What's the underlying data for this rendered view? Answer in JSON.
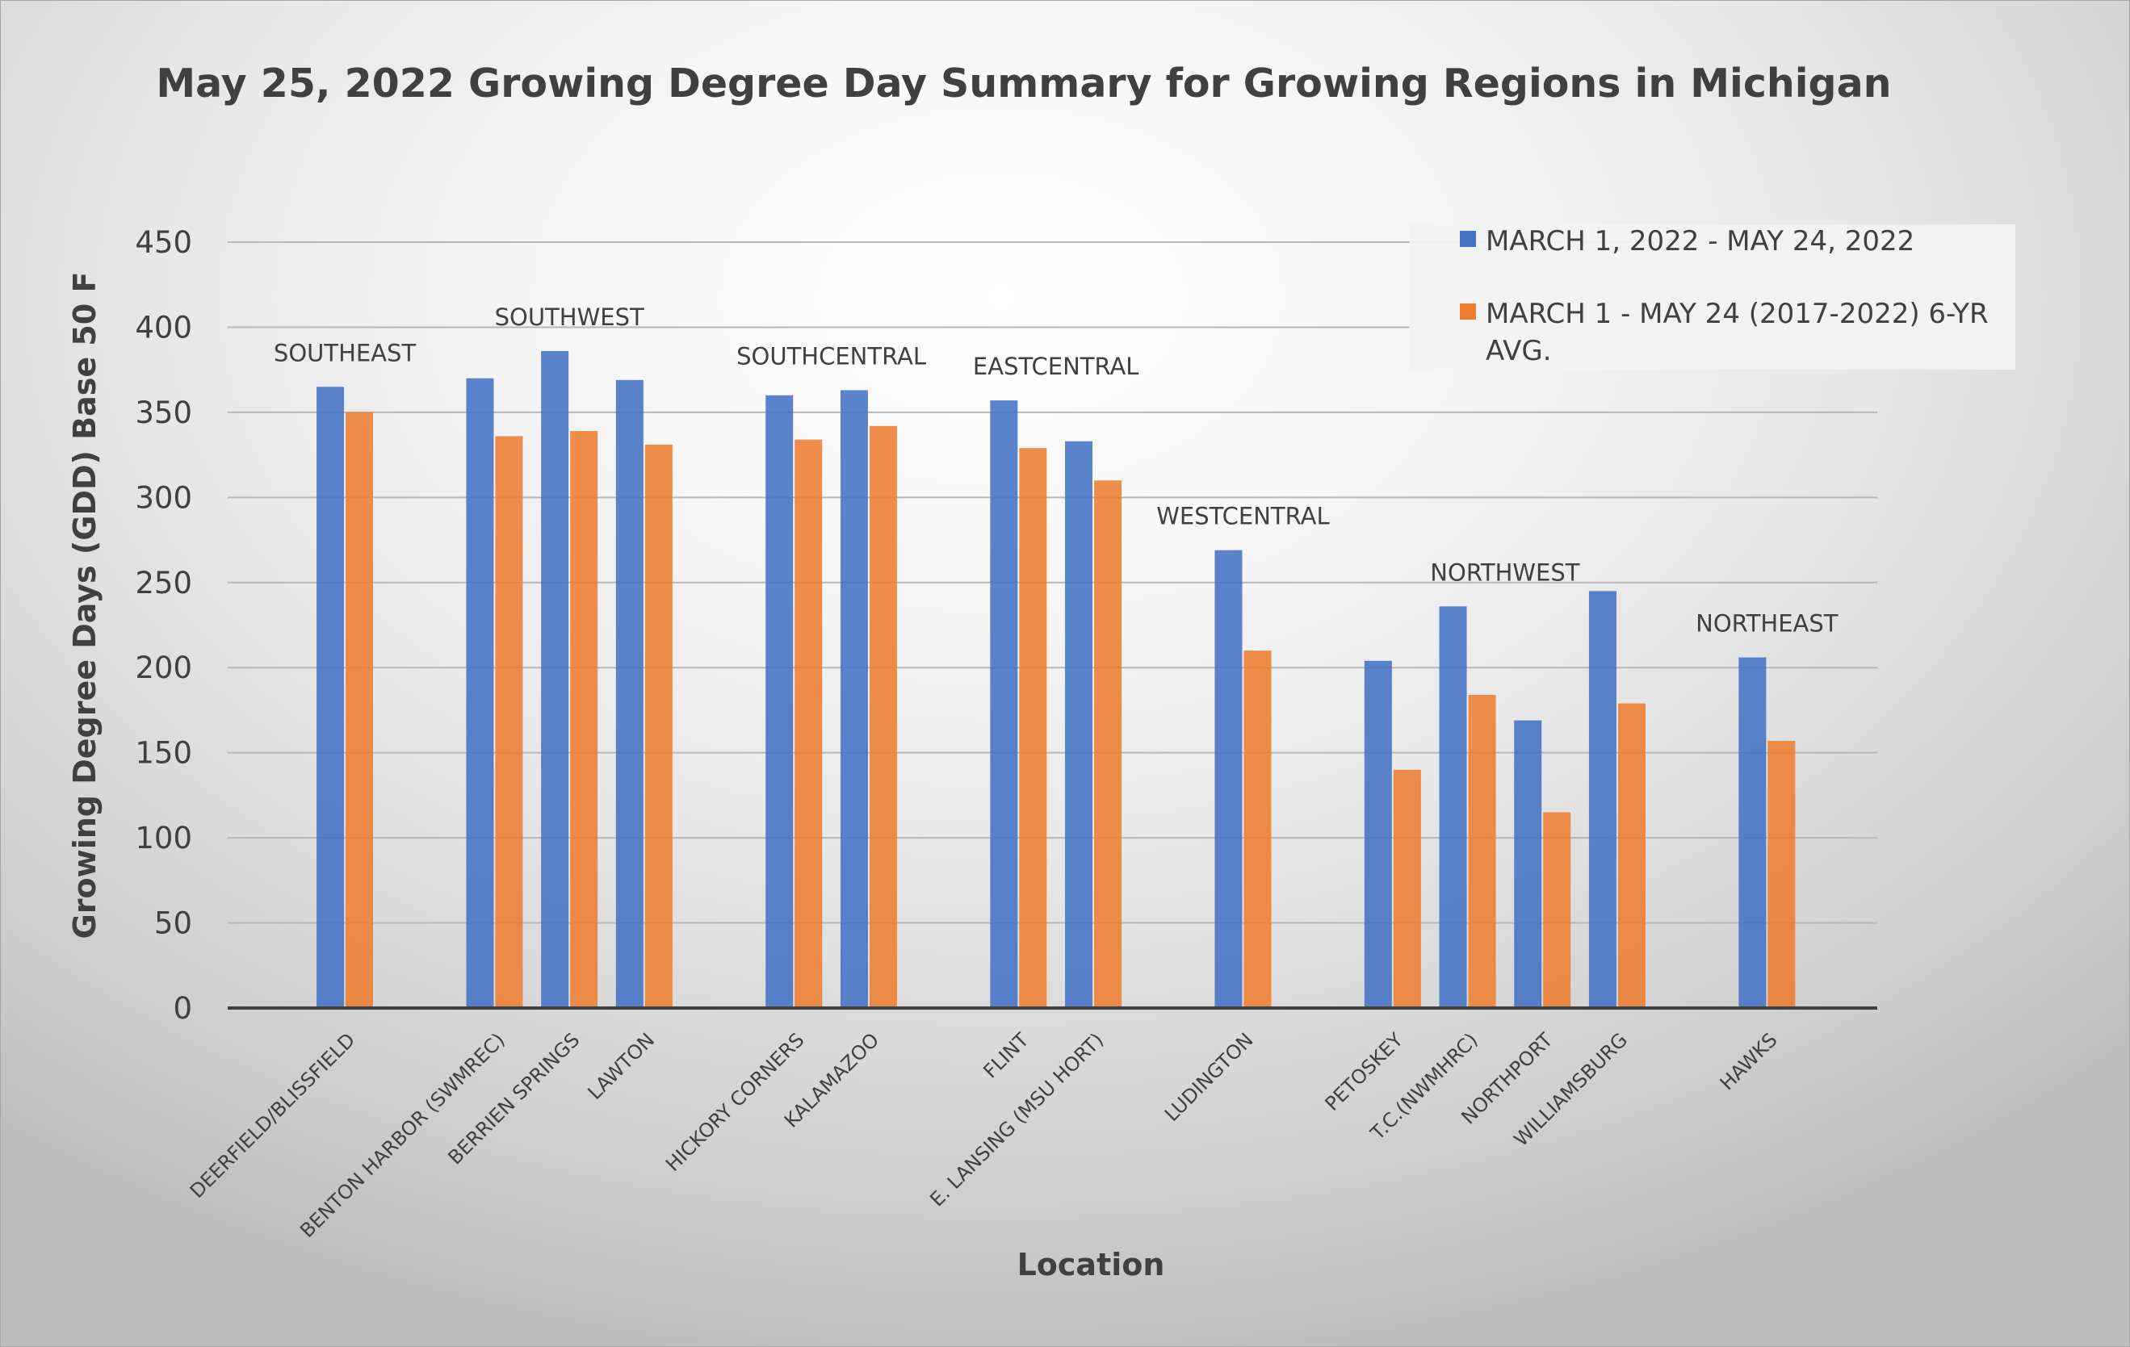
{
  "chart_data": {
    "type": "bar",
    "title": "May 25, 2022 Growing Degree Day Summary for Growing Regions in Michigan",
    "xlabel": "Location",
    "ylabel": "Growing Degree Days (GDD) Base 50 F",
    "ylim": [
      0,
      450
    ],
    "yticks": [
      0,
      50,
      100,
      150,
      200,
      250,
      300,
      350,
      400,
      450
    ],
    "grid": true,
    "legend_position": "top-right",
    "categories": [
      "",
      "DEERFIELD/BLISSFIELD",
      "",
      "BENTON HARBOR (SWMREC)",
      "BERRIEN SPRINGS",
      "LAWTON",
      "",
      "HICKORY CORNERS",
      "KALAMAZOO",
      "",
      "FLINT",
      "E. LANSING (MSU HORT)",
      "",
      "LUDINGTON",
      "",
      "PETOSKEY",
      "T.C.(NWMHRC)",
      "NORTHPORT",
      "WILLIAMSBURG",
      "",
      "HAWKS"
    ],
    "series": [
      {
        "name": "MARCH 1, 2022 - MAY 24, 2022",
        "color": "#4472c4",
        "values": [
          null,
          365,
          null,
          370,
          386,
          369,
          null,
          360,
          363,
          null,
          357,
          333,
          null,
          269,
          null,
          204,
          236,
          169,
          245,
          null,
          206
        ]
      },
      {
        "name": "MARCH 1 - MAY 24 (2017-2022) 6-YR AVG.",
        "color": "#ed7d31",
        "values": [
          null,
          350,
          null,
          336,
          339,
          331,
          null,
          334,
          342,
          null,
          329,
          310,
          null,
          210,
          null,
          140,
          184,
          115,
          179,
          null,
          157
        ]
      }
    ],
    "annotations": [
      {
        "text": "SOUTHEAST",
        "category_index": 1
      },
      {
        "text": "SOUTHWEST",
        "category_index": 4
      },
      {
        "text": "SOUTHCENTRAL",
        "category_index": 7.5
      },
      {
        "text": "EASTCENTRAL",
        "category_index": 10.5
      },
      {
        "text": "WESTCENTRAL",
        "category_index": 13
      },
      {
        "text": "NORTHWEST",
        "category_index": 16.5
      },
      {
        "text": "NORTHEAST",
        "category_index": 20
      }
    ],
    "legend_label_lines": [
      [
        "MARCH 1, 2022 - MAY 24, 2022"
      ],
      [
        "MARCH 1 - MAY 24 (2017-2022) 6-YR",
        "AVG."
      ]
    ]
  }
}
